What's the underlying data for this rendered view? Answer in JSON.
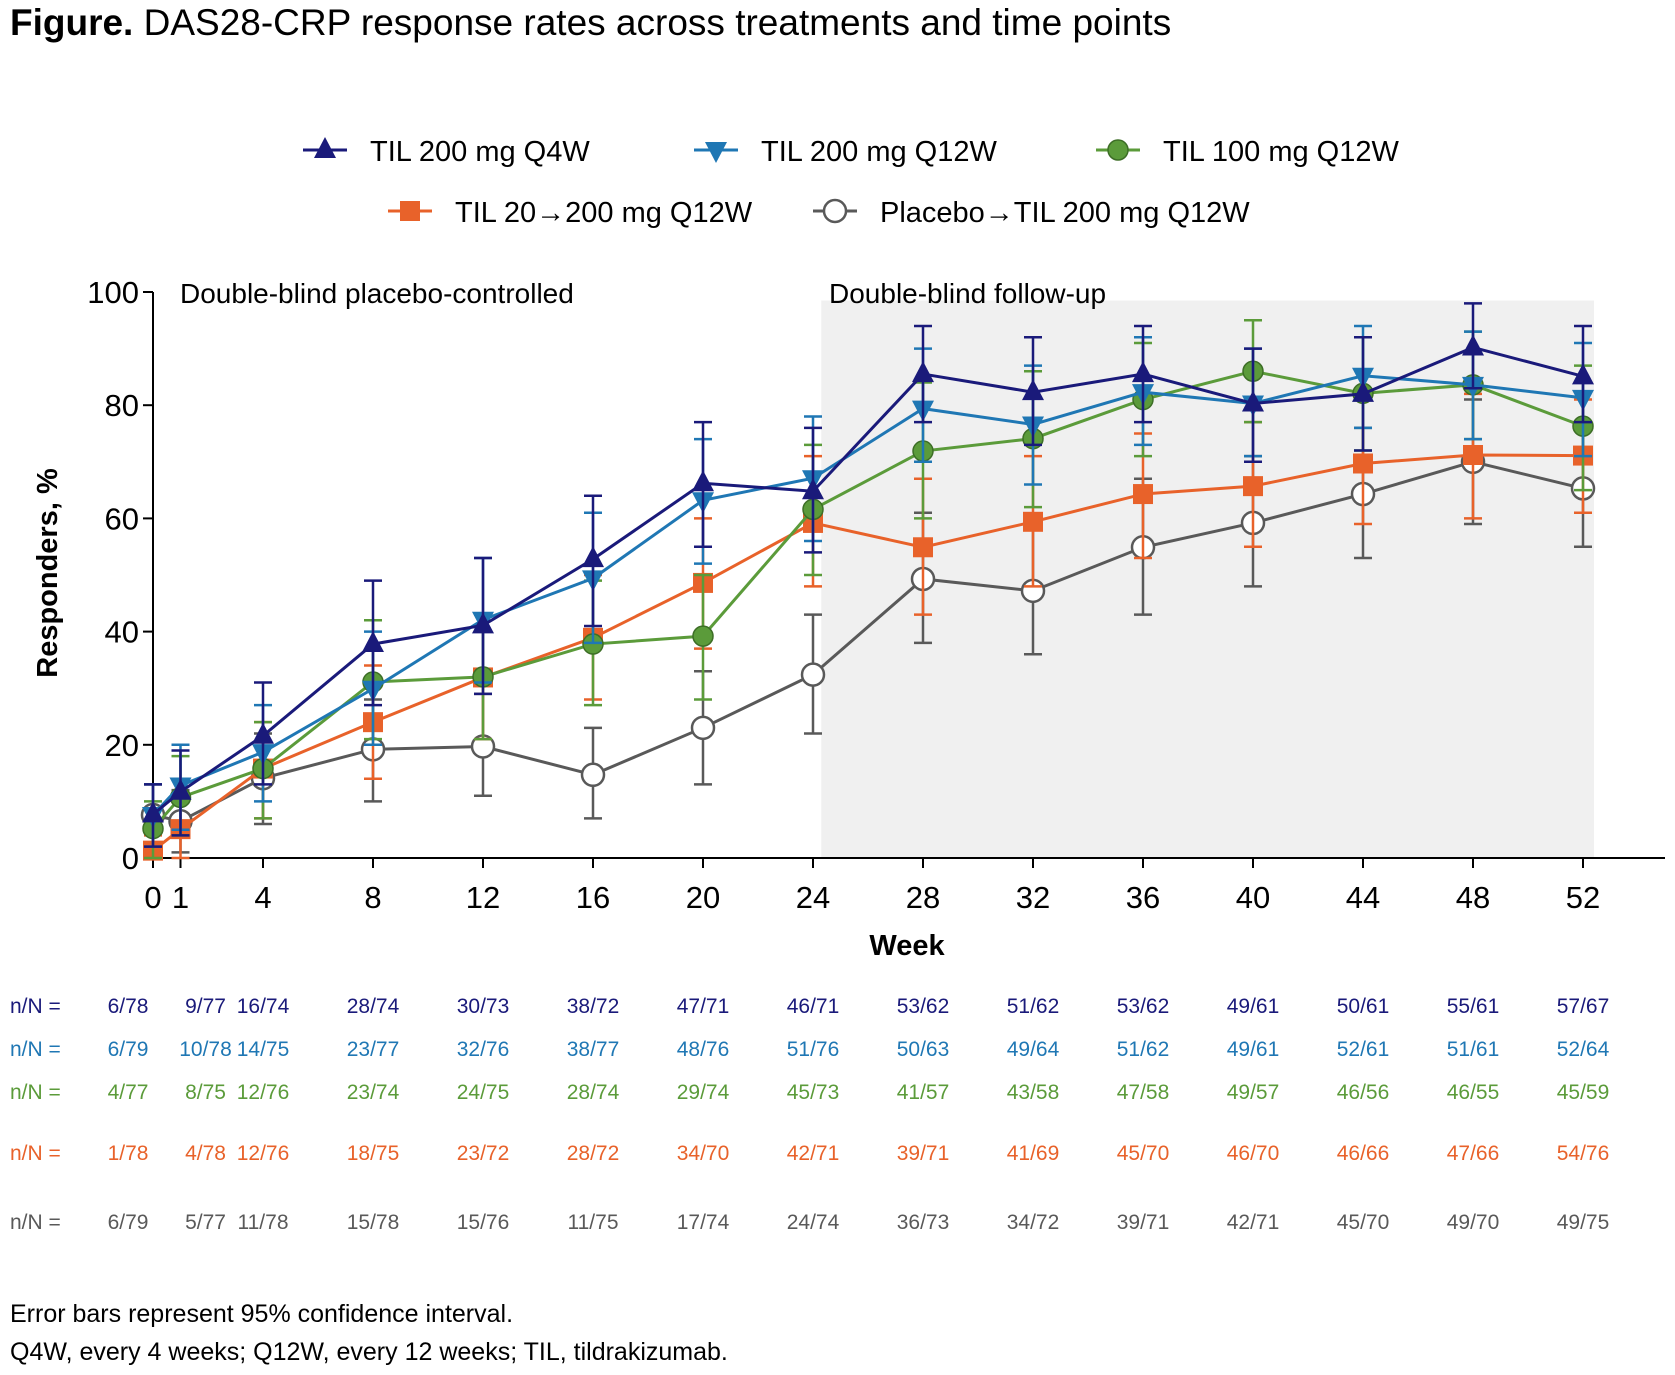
{
  "title_bold": "Figure.",
  "title_text": "DAS28-CRP response rates across treatments and time points",
  "chart_data": {
    "type": "line",
    "xlabel": "Week",
    "ylabel": "Responders, %",
    "ylim": [
      0,
      100
    ],
    "yticks": [
      0,
      20,
      40,
      60,
      80,
      100
    ],
    "xticks": [
      0,
      1,
      4,
      8,
      12,
      16,
      20,
      24,
      28,
      32,
      36,
      40,
      44,
      48,
      52
    ],
    "x": [
      0,
      1,
      4,
      8,
      12,
      16,
      20,
      24,
      28,
      32,
      36,
      40,
      44,
      48,
      52
    ],
    "period_labels": [
      "Double-blind placebo-controlled",
      "Double-blind follow-up"
    ],
    "shaded_region_x": [
      24.3,
      52.4
    ],
    "legend_position": "top",
    "series": [
      {
        "name": "TIL 200 mg Q4W",
        "color": "#1a1a7a",
        "marker": "triangle-up",
        "values": [
          7.7,
          11.7,
          21.6,
          37.8,
          41.1,
          52.8,
          66.2,
          64.8,
          85.5,
          82.3,
          85.5,
          80.3,
          82.0,
          90.2,
          85.1
        ],
        "ci_low": [
          2,
          4,
          13,
          27,
          29,
          41,
          55,
          54,
          77,
          73,
          77,
          70,
          72,
          83,
          77
        ],
        "ci_high": [
          13,
          19,
          31,
          49,
          53,
          64,
          77,
          76,
          94,
          92,
          94,
          90,
          92,
          98,
          94
        ]
      },
      {
        "name": "TIL 200 mg Q12W",
        "color": "#1f77b4",
        "marker": "triangle-down",
        "values": [
          7.6,
          12.8,
          18.7,
          29.9,
          42.1,
          49.4,
          63.2,
          67.1,
          79.4,
          76.6,
          82.3,
          80.3,
          85.2,
          83.6,
          81.3
        ],
        "ci_low": [
          2,
          5,
          10,
          20,
          31,
          38,
          52,
          56,
          70,
          66,
          73,
          71,
          76,
          74,
          71
        ],
        "ci_high": [
          13,
          20,
          27,
          40,
          53,
          61,
          74,
          78,
          90,
          87,
          92,
          90,
          94,
          93,
          91
        ]
      },
      {
        "name": "TIL 100 mg Q12W",
        "color": "#5b9b3a",
        "marker": "circle",
        "values": [
          5.2,
          10.7,
          15.8,
          31.1,
          32.0,
          37.8,
          39.2,
          61.6,
          71.9,
          74.1,
          81.0,
          86.0,
          82.1,
          83.6,
          76.3
        ],
        "ci_low": [
          0,
          4,
          7,
          21,
          21,
          27,
          28,
          50,
          60,
          62,
          71,
          77,
          72,
          74,
          65
        ],
        "ci_high": [
          10,
          18,
          24,
          42,
          43,
          49,
          50,
          73,
          84,
          86,
          91,
          95,
          92,
          93,
          87
        ]
      },
      {
        "name": "TIL 20→200 mg Q12W",
        "color": "#e8622a",
        "marker": "square",
        "values": [
          1.3,
          5.1,
          15.8,
          24.0,
          31.9,
          38.9,
          48.6,
          59.2,
          54.9,
          59.4,
          64.3,
          65.7,
          69.7,
          71.2,
          71.1
        ],
        "ci_low": [
          0,
          0,
          7,
          14,
          21,
          28,
          37,
          48,
          43,
          48,
          53,
          55,
          59,
          60,
          61
        ],
        "ci_high": [
          4,
          10,
          24,
          34,
          43,
          50,
          60,
          71,
          67,
          71,
          75,
          77,
          81,
          82,
          81
        ]
      },
      {
        "name": "Placebo→TIL 200 mg Q12W",
        "color": "#595959",
        "marker": "open-circle",
        "values": [
          7.6,
          6.5,
          14.1,
          19.2,
          19.7,
          14.7,
          23.0,
          32.4,
          49.3,
          47.2,
          54.9,
          59.2,
          64.3,
          70.0,
          65.3
        ],
        "ci_low": [
          2,
          1,
          6,
          10,
          11,
          7,
          13,
          22,
          38,
          36,
          43,
          48,
          53,
          59,
          55
        ],
        "ci_high": [
          13,
          12,
          22,
          28,
          29,
          23,
          33,
          43,
          61,
          59,
          67,
          71,
          76,
          81,
          76
        ]
      }
    ]
  },
  "nn_label": "n/N =",
  "nn_rows": [
    {
      "color": "#1a1a7a",
      "cells": [
        "6/78",
        "9/77",
        "16/74",
        "28/74",
        "30/73",
        "38/72",
        "47/71",
        "46/71",
        "53/62",
        "51/62",
        "53/62",
        "49/61",
        "50/61",
        "55/61",
        "57/67"
      ]
    },
    {
      "color": "#1f77b4",
      "cells": [
        "6/79",
        "10/78",
        "14/75",
        "23/77",
        "32/76",
        "38/77",
        "48/76",
        "51/76",
        "50/63",
        "49/64",
        "51/62",
        "49/61",
        "52/61",
        "51/61",
        "52/64"
      ]
    },
    {
      "color": "#5b9b3a",
      "cells": [
        "4/77",
        "8/75",
        "12/76",
        "23/74",
        "24/75",
        "28/74",
        "29/74",
        "45/73",
        "41/57",
        "43/58",
        "47/58",
        "49/57",
        "46/56",
        "46/55",
        "45/59"
      ]
    },
    {
      "color": "#e8622a",
      "cells": [
        "1/78",
        "4/78",
        "12/76",
        "18/75",
        "23/72",
        "28/72",
        "34/70",
        "42/71",
        "39/71",
        "41/69",
        "45/70",
        "46/70",
        "46/66",
        "47/66",
        "54/76"
      ]
    },
    {
      "color": "#595959",
      "cells": [
        "6/79",
        "5/77",
        "11/78",
        "15/78",
        "15/76",
        "11/75",
        "17/74",
        "24/74",
        "36/73",
        "34/72",
        "39/71",
        "42/71",
        "45/70",
        "49/70",
        "49/75"
      ]
    }
  ],
  "footnotes": [
    "Error bars represent 95% confidence interval.",
    "Q4W, every 4 weeks; Q12W, every 12 weeks; TIL, tildrakizumab."
  ]
}
